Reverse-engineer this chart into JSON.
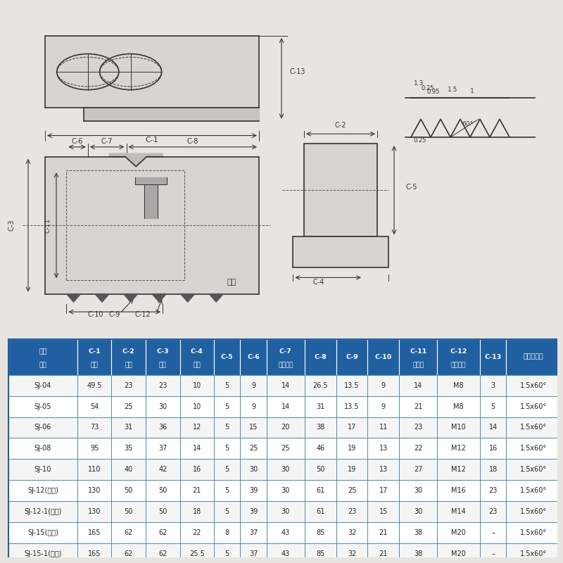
{
  "bg_color": "#e8e5e0",
  "diagram_bg": "#e8e5e0",
  "table_header_bg": "#2060a0",
  "table_header_text": "#ffffff",
  "table_border_color": "#2060a0",
  "table_row_bg1": "#ffffff",
  "table_row_bg2": "#f0f4f8",
  "table_text_color": "#222222",
  "header_row1": [
    "寸法",
    "C-1",
    "C-2",
    "C-3",
    "C-4",
    "",
    "C-6",
    "C-7",
    "C-8",
    "C-9",
    "C-10",
    "C-11",
    "C-12",
    "C-13",
    "鋸齒狀節距"
  ],
  "header_row2": [
    "型號",
    "長度",
    "寬度",
    "高度",
    "槽寬",
    "C-5",
    "",
    "孔中心距",
    "",
    "",
    "",
    "沉頭孔",
    "安裝螺絲",
    "",
    ""
  ],
  "col_labels": [
    "寸法\n型號",
    "C-1\n長度",
    "C-2\n寬度",
    "C-3\n高度",
    "C-4\n槽寬",
    "C-5",
    "C-6",
    "C-7\n孔中心距",
    "C-8",
    "C-9",
    "C-10",
    "C-11\n沉頭孔",
    "C-12\n安裝螺絲",
    "C-13",
    "鋸齒狀節距"
  ],
  "rows": [
    [
      "SJ-04",
      "49.5",
      "23",
      "23",
      "10",
      "5",
      "9",
      "14",
      "26.5",
      "13.5",
      "9",
      "14",
      "M8",
      "3",
      "1.5x60°"
    ],
    [
      "SJ-05",
      "54",
      "25",
      "30",
      "10",
      "5",
      "9",
      "14",
      "31",
      "13.5",
      "9",
      "21",
      "M8",
      "5",
      "1.5x60°"
    ],
    [
      "SJ-06",
      "73",
      "31",
      "36",
      "12",
      "5",
      "15",
      "20",
      "38",
      "17",
      "11",
      "23",
      "M10",
      "14",
      "1.5x60°"
    ],
    [
      "SJ-08",
      "95",
      "35",
      "37",
      "14",
      "5",
      "25",
      "25",
      "46",
      "19",
      "13",
      "22",
      "M12",
      "16",
      "1.5x60°"
    ],
    [
      "SJ-10",
      "110",
      "40",
      "42",
      "16",
      "5",
      "30",
      "30",
      "50",
      "19",
      "13",
      "27",
      "M12",
      "18",
      "1.5x60°"
    ],
    [
      "SJ-12(中空)",
      "130",
      "50",
      "50",
      "21",
      "5",
      "39",
      "30",
      "61",
      "25",
      "17",
      "30",
      "M16",
      "23",
      "1.5x60°"
    ],
    [
      "SJ-12-1(中實)",
      "130",
      "50",
      "50",
      "18",
      "5",
      "39",
      "30",
      "61",
      "23",
      "15",
      "30",
      "M14",
      "23",
      "1.5x60°"
    ],
    [
      "SJ-15(中空)",
      "165",
      "62",
      "62",
      "22",
      "8",
      "37",
      "43",
      "85",
      "32",
      "21",
      "38",
      "M20",
      "–",
      "1.5x60°"
    ],
    [
      "SJ-15-1(中實)",
      "165",
      "62",
      "62",
      "25.5",
      "5",
      "37",
      "43",
      "85",
      "32",
      "21",
      "38",
      "M20",
      "–",
      "1.5x60°"
    ]
  ]
}
